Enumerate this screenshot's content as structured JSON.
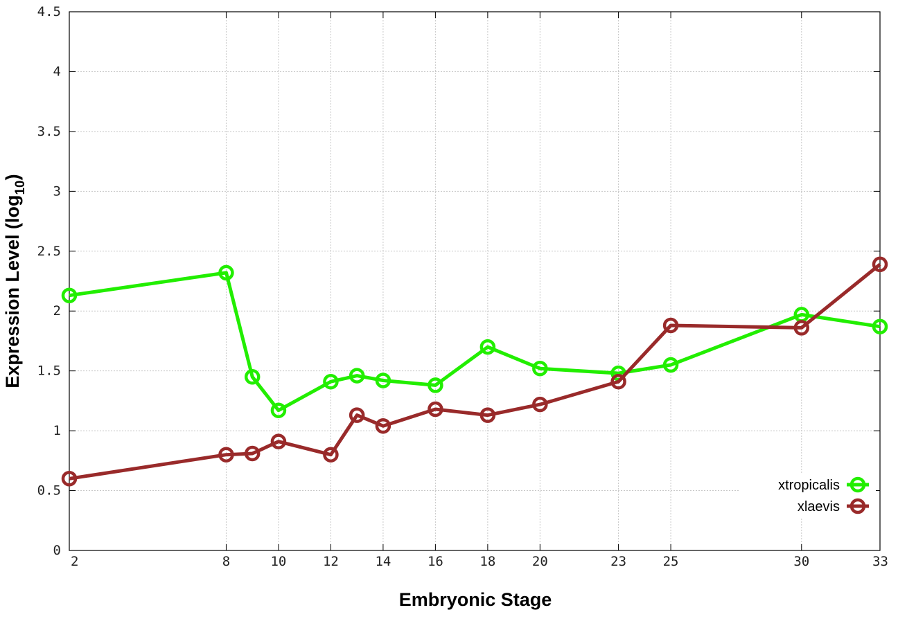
{
  "chart_data": {
    "type": "line",
    "xlabel": "Embryonic Stage",
    "ylabel": {
      "main": "Expression Level (log",
      "sub": "10",
      "close": ")"
    },
    "xlim": [
      2,
      33
    ],
    "ylim": [
      0,
      4.5
    ],
    "x_ticks": [
      2,
      8,
      10,
      12,
      14,
      16,
      18,
      20,
      23,
      25,
      30,
      33
    ],
    "x_tick_labels": [
      "2",
      "8",
      "10",
      "12",
      "14",
      "16",
      "18",
      "20",
      "23",
      "25",
      "30",
      "33"
    ],
    "y_ticks": [
      0,
      0.5,
      1,
      1.5,
      2,
      2.5,
      3,
      3.5,
      4,
      4.5
    ],
    "y_tick_labels": [
      "0",
      "0.5",
      "1",
      "1.5",
      "2",
      "2.5",
      "3",
      "3.5",
      "4",
      "4.5"
    ],
    "grid": true,
    "legend_position": "bottom-right",
    "x": [
      2,
      8,
      9,
      10,
      12,
      13,
      14,
      16,
      18,
      20,
      23,
      25,
      30,
      33
    ],
    "series": [
      {
        "name": "xtropicalis",
        "color": "#22ee00",
        "marker": "open-circle",
        "values": [
          2.13,
          2.32,
          1.45,
          1.17,
          1.41,
          1.46,
          1.42,
          1.38,
          1.7,
          1.52,
          1.48,
          1.55,
          1.97,
          1.87
        ]
      },
      {
        "name": "xlaevis",
        "color": "#992a2a",
        "marker": "open-circle",
        "values": [
          0.6,
          0.8,
          0.81,
          0.91,
          0.8,
          1.13,
          1.04,
          1.18,
          1.13,
          1.22,
          1.41,
          1.88,
          1.86,
          2.39
        ]
      }
    ]
  }
}
